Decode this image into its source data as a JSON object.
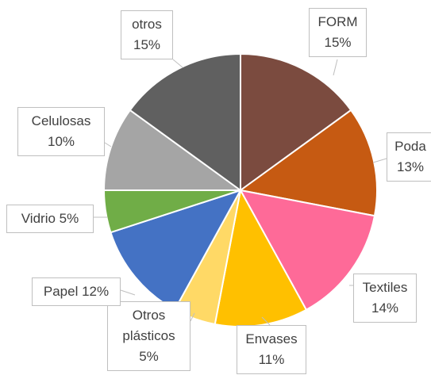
{
  "chart_data": {
    "type": "pie",
    "categories": [
      "FORM",
      "Poda",
      "Textiles",
      "Envases",
      "Otros plásticos",
      "Papel",
      "Vidrio",
      "Celulosas",
      "otros"
    ],
    "values": [
      15,
      13,
      14,
      11,
      5,
      12,
      5,
      10,
      15
    ],
    "value_labels": [
      "15%",
      "13%",
      "14%",
      "11%",
      "5%",
      "12%",
      "5%",
      "10%",
      "15%"
    ],
    "colors": [
      "#7b4b3f",
      "#c65a12",
      "#fe6a98",
      "#ffc000",
      "#ffd966",
      "#4472c4",
      "#70ad47",
      "#a5a5a5",
      "#606060"
    ]
  }
}
